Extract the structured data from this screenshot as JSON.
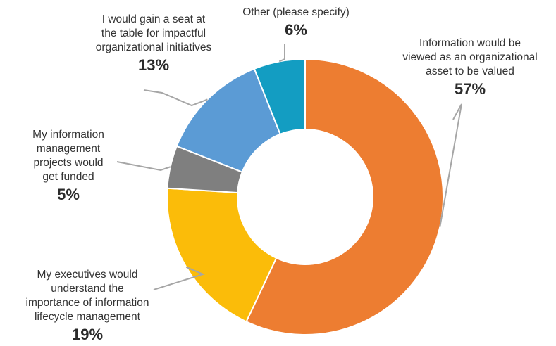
{
  "chart_data": {
    "type": "pie",
    "variant": "donut",
    "title": "",
    "categories": [
      "Information would be viewed as an organizational asset to be valued",
      "My executives would understand the importance of information lifecycle management",
      "My information management projects would get funded",
      "I would gain a seat at the table for impactful organizational initiatives",
      "Other (please specify)"
    ],
    "values": [
      57,
      19,
      5,
      13,
      6
    ],
    "unit": "%",
    "colors": [
      "#ED7D31",
      "#FBBC09",
      "#7F7F7F",
      "#5B9BD5",
      "#139DC2"
    ],
    "legend": "none",
    "labels": [
      {
        "text": "Information would be\nviewed as an organizational\nasset to be valued",
        "pct": "57%"
      },
      {
        "text": "My executives would\nunderstand the\nimportance of information\nlifecycle management",
        "pct": "19%"
      },
      {
        "text": "My information\nmanagement\nprojects would\nget funded",
        "pct": "5%"
      },
      {
        "text": "I would gain a seat at\nthe table for impactful\norganizational initiatives",
        "pct": "13%"
      },
      {
        "text": "Other (please specify)",
        "pct": "6%"
      }
    ]
  }
}
